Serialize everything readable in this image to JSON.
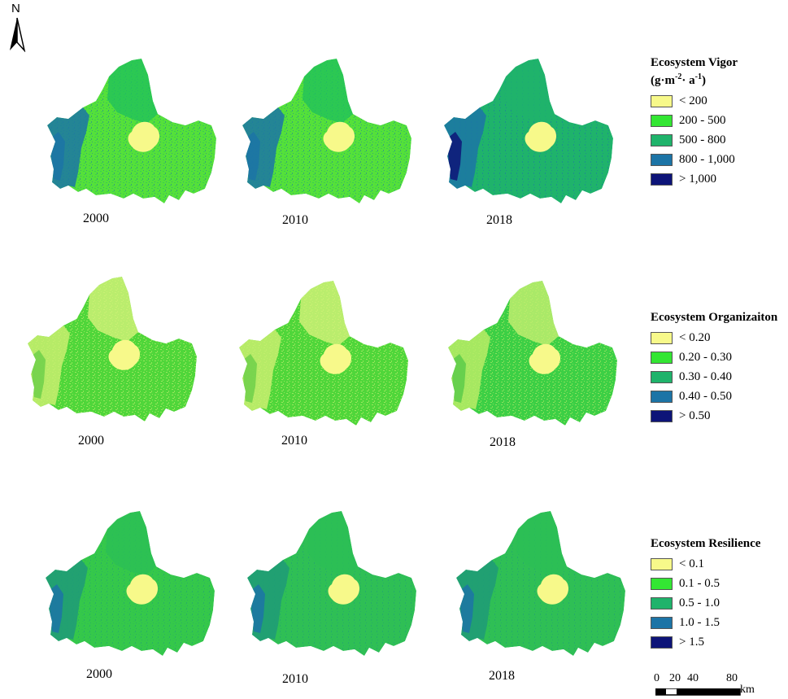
{
  "north_arrow": {
    "label": "N"
  },
  "color_classes": [
    "#f7f98a",
    "#33e633",
    "#1fb36b",
    "#1c74a6",
    "#0d1478"
  ],
  "rows": [
    {
      "id": "vigor",
      "legend": {
        "title_html": "Ecosystem Vigor",
        "unit_base": "(g·m",
        "unit_sup1": "-2",
        "unit_mid": "· a",
        "unit_sup2": "-1",
        "unit_end": ")",
        "classes": [
          "< 200",
          "200 - 500",
          "500 - 800",
          "800 - 1,000",
          "> 1,000"
        ]
      },
      "maps": [
        {
          "year": "2000",
          "dominant": "#55e03a",
          "west": "#1c74a6",
          "north": "#22c25a",
          "city": "#f7f98a",
          "deep_west": "#1c74a6"
        },
        {
          "year": "2010",
          "dominant": "#55e03a",
          "west": "#1c74a6",
          "north": "#22c25a",
          "city": "#f7f98a",
          "deep_west": "#1c74a6"
        },
        {
          "year": "2018",
          "dominant": "#1fb36b",
          "west": "#1c74a6",
          "north": "#1fb36b",
          "city": "#f7f98a",
          "deep_west": "#0d1478"
        }
      ]
    },
    {
      "id": "organization",
      "legend": {
        "title": "Ecosystem Organizaiton",
        "classes": [
          "< 0.20",
          "0.20 - 0.30",
          "0.30 - 0.40",
          "0.40 - 0.50",
          "> 0.50"
        ]
      },
      "maps": [
        {
          "year": "2000",
          "dominant": "#4fd63a",
          "west": "#c8ef70",
          "north": "#d4f27a",
          "city": "#f7f98a",
          "deep_west": "#6fd04a"
        },
        {
          "year": "2010",
          "dominant": "#4fd63a",
          "west": "#c8ef70",
          "north": "#d4f27a",
          "city": "#f7f98a",
          "deep_west": "#6fd04a"
        },
        {
          "year": "2018",
          "dominant": "#3ccf45",
          "west": "#b9ec66",
          "north": "#c6ef70",
          "city": "#f7f98a",
          "deep_west": "#5ccb4a"
        }
      ]
    },
    {
      "id": "resilience",
      "legend": {
        "title": "Ecosystem Resilience",
        "classes": [
          "< 0.1",
          "0.1 - 0.5",
          "0.5 - 1.0",
          "1.0 - 1.5",
          "> 1.5"
        ]
      },
      "maps": [
        {
          "year": "2000",
          "dominant": "#35c84a",
          "west": "#1f9a78",
          "north": "#2cbf55",
          "city": "#f7f98a",
          "deep_west": "#1c74a6"
        },
        {
          "year": "2010",
          "dominant": "#2fbf55",
          "west": "#1f9a78",
          "north": "#2cbf55",
          "city": "#f7f98a",
          "deep_west": "#1c74a6"
        },
        {
          "year": "2018",
          "dominant": "#2fbf55",
          "west": "#1f9a78",
          "north": "#2cbf55",
          "city": "#f7f98a",
          "deep_west": "#1c74a6"
        }
      ]
    }
  ],
  "scale_bar": {
    "ticks": [
      "0",
      "20",
      "40",
      "80"
    ],
    "unit": "km"
  }
}
